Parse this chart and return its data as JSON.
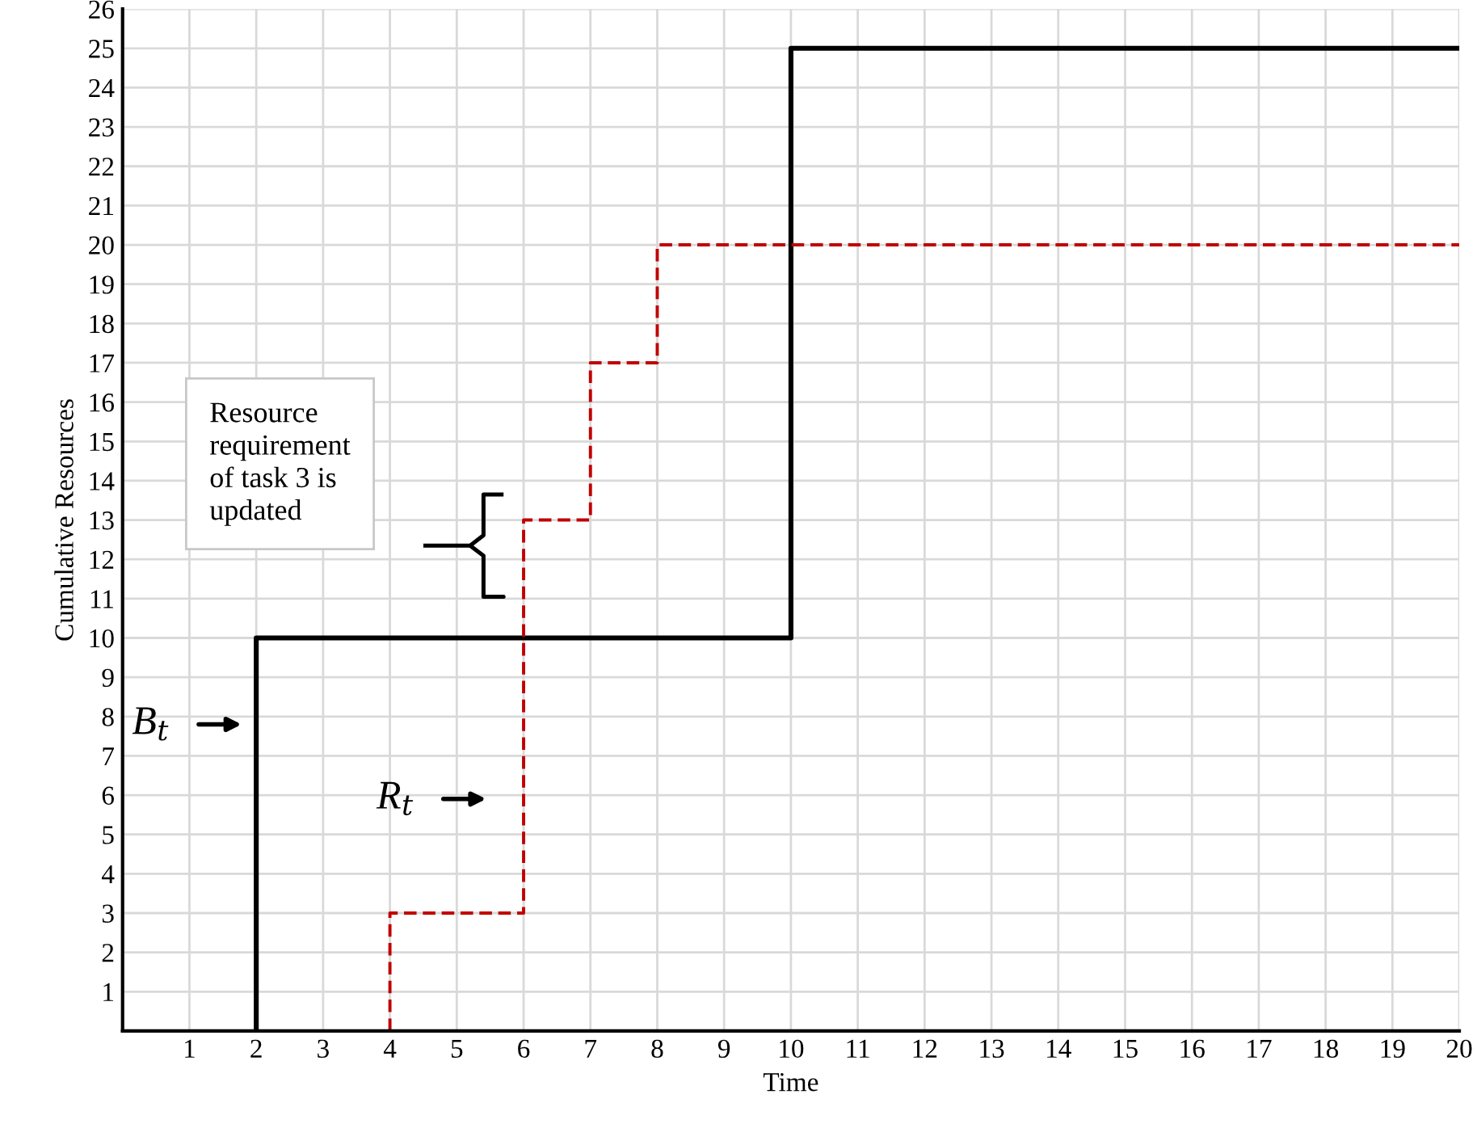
{
  "chart_data": {
    "type": "step",
    "xlabel": "Time",
    "ylabel": "Cumulative Resources",
    "xlim": [
      0,
      20
    ],
    "xticks": [
      1,
      2,
      3,
      4,
      5,
      6,
      7,
      8,
      9,
      10,
      11,
      12,
      13,
      14,
      15,
      16,
      17,
      18,
      19,
      20
    ],
    "ylim": [
      0,
      26
    ],
    "yticks": [
      1,
      2,
      3,
      4,
      5,
      6,
      7,
      8,
      9,
      10,
      11,
      12,
      13,
      14,
      15,
      16,
      17,
      18,
      19,
      20,
      21,
      22,
      23,
      24,
      25,
      26
    ],
    "grid": true,
    "legend": false,
    "series": [
      {
        "color": "#000000",
        "line_style": "solid",
        "x": [
          2,
          2,
          10,
          20
        ],
        "values": [
          0,
          10,
          25,
          25
        ]
      },
      {
        "color": "#c00000",
        "line_style": "dashed",
        "x": [
          4,
          4,
          6,
          7,
          8,
          20
        ],
        "values": [
          0,
          3,
          13,
          17,
          20,
          20
        ]
      }
    ],
    "annotations": [
      "Resource\nrequirement\nof task 3 is\nupdated",
      "B$_{t}$",
      "R$_{t}$"
    ]
  }
}
